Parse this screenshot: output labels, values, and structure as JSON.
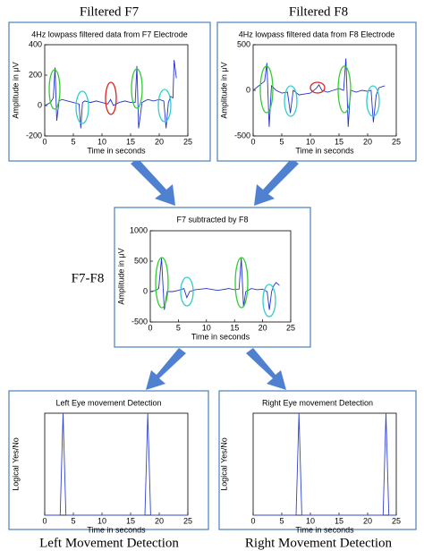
{
  "panels": [
    {
      "heading": "Filtered F7",
      "title": "4Hz lowpass filtered data from F7 Electrode",
      "ylabel": "Amplitude in μV",
      "xlabel": "Time in seconds",
      "color": "#2233cc",
      "xlim": [
        0,
        25
      ],
      "xticks": [
        0,
        5,
        10,
        15,
        20,
        25
      ],
      "ylim": [
        -200,
        400
      ],
      "yticks": [
        -200,
        0,
        200,
        400
      ],
      "x": [
        0,
        1,
        1.5,
        1.8,
        2.1,
        2.5,
        3,
        4,
        5,
        6,
        6.3,
        6.6,
        7,
        8,
        9,
        10,
        11,
        11.5,
        12,
        13,
        14,
        15,
        15.8,
        16.1,
        16.4,
        17,
        18,
        19,
        20,
        20.8,
        21.2,
        21.6,
        22,
        22.4,
        22.6,
        23
      ],
      "values": [
        0,
        20,
        50,
        250,
        -100,
        30,
        40,
        30,
        20,
        10,
        -150,
        20,
        30,
        20,
        30,
        20,
        10,
        40,
        0,
        20,
        30,
        20,
        20,
        260,
        -150,
        20,
        40,
        30,
        40,
        30,
        -150,
        20,
        60,
        50,
        300,
        180
      ]
    },
    {
      "heading": "Filtered F8",
      "title": "4Hz lowpass filtered data from F8 Electrode",
      "ylabel": "Amplitude in μV",
      "xlabel": "Time in seconds",
      "color": "#2233cc",
      "xlim": [
        0,
        25
      ],
      "xticks": [
        0,
        5,
        10,
        15,
        20,
        25
      ],
      "ylim": [
        -500,
        500
      ],
      "yticks": [
        -500,
        0,
        500
      ],
      "x": [
        0,
        1,
        2,
        2.4,
        2.8,
        3.2,
        4,
        5,
        6,
        6.5,
        7,
        8,
        9,
        10,
        11,
        11.5,
        12,
        13,
        14,
        15,
        15.8,
        16.2,
        16.6,
        17,
        18,
        19,
        20,
        20.6,
        21,
        21.5,
        22,
        23
      ],
      "values": [
        0,
        50,
        100,
        300,
        -400,
        50,
        0,
        -30,
        -20,
        -250,
        0,
        -50,
        -40,
        -30,
        20,
        60,
        0,
        -20,
        0,
        20,
        0,
        350,
        -400,
        0,
        -20,
        0,
        -10,
        0,
        -350,
        -50,
        30,
        50
      ]
    },
    {
      "heading": "F7-F8",
      "title": "F7 subtracted by F8",
      "ylabel": "Amplitude in μV",
      "xlabel": "Time in seconds",
      "color": "#2233cc",
      "xlim": [
        0,
        25
      ],
      "xticks": [
        0,
        5,
        10,
        15,
        20,
        25
      ],
      "ylim": [
        -500,
        1000
      ],
      "yticks": [
        -500,
        0,
        500,
        1000
      ],
      "x": [
        0,
        1,
        1.5,
        2,
        2.5,
        3,
        4,
        5,
        6,
        6.5,
        7,
        8,
        10,
        12,
        14,
        15,
        15.8,
        16.2,
        16.6,
        17,
        18,
        19,
        20,
        20.8,
        21.2,
        21.6,
        22,
        22.4,
        23
      ],
      "values": [
        0,
        20,
        50,
        550,
        -300,
        0,
        0,
        20,
        50,
        -100,
        0,
        30,
        50,
        20,
        50,
        30,
        40,
        550,
        -250,
        0,
        50,
        30,
        40,
        0,
        -300,
        0,
        100,
        150,
        100
      ]
    },
    {
      "caption": "Left Movement Detection",
      "title": "Left Eye movement Detection",
      "ylabel": "Logical Yes/No",
      "xlabel": "Time in seconds",
      "color": "#3344cc",
      "xlim": [
        0,
        25
      ],
      "xticks": [
        0,
        5,
        10,
        15,
        20,
        25
      ],
      "ylim": [
        0,
        1
      ],
      "x": [
        0,
        2.7,
        3.2,
        3.7,
        17.5,
        18,
        18.5,
        25
      ],
      "values": [
        0,
        0,
        1,
        0,
        0,
        1,
        0,
        0
      ]
    },
    {
      "caption": "Right Movement Detection",
      "title": "Right Eye movement Detection",
      "ylabel": "Logical Yes/No",
      "xlabel": "Time in seconds",
      "color": "#3344cc",
      "xlim": [
        0,
        25
      ],
      "xticks": [
        0,
        5,
        10,
        15,
        20,
        25
      ],
      "ylim": [
        0,
        1
      ],
      "x": [
        0,
        7.5,
        8,
        8.5,
        22.7,
        23.2,
        23.7,
        25
      ],
      "values": [
        0,
        0,
        1,
        0,
        0,
        1,
        0,
        0
      ]
    }
  ]
}
